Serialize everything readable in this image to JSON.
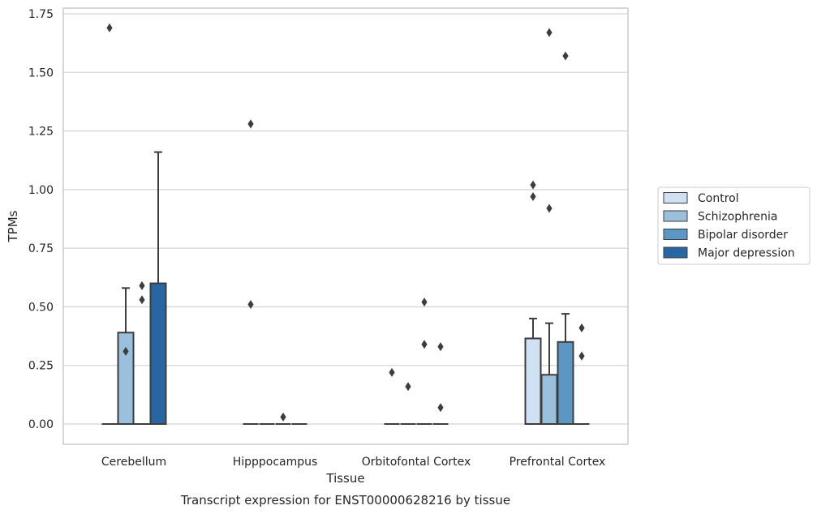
{
  "chart_data": {
    "type": "box",
    "xlabel": "Tissue",
    "ylabel": "TPMs",
    "caption": "Transcript expression for ENST00000628216 by tissue",
    "ylim": [
      -0.08,
      1.77
    ],
    "yticks": [
      0.0,
      0.25,
      0.5,
      0.75,
      1.0,
      1.25,
      1.5,
      1.75
    ],
    "ytick_labels": [
      "0.00",
      "0.25",
      "0.50",
      "0.75",
      "1.00",
      "1.25",
      "1.50",
      "1.75"
    ],
    "grid": "horizontal",
    "legend_position": "right",
    "categories": [
      "Cerebellum",
      "Hipppocampus",
      "Orbitofontal Cortex",
      "Prefrontal Cortex"
    ],
    "series": [
      {
        "name": "Control",
        "color": "#cfe1f2",
        "boxes": [
          {
            "q1": 0,
            "median": 0,
            "q3": 0,
            "whisker_high": 0,
            "outliers": [
              1.69
            ]
          },
          {
            "q1": 0,
            "median": 0,
            "q3": 0,
            "whisker_high": 0,
            "outliers": [
              1.28,
              0.51
            ]
          },
          {
            "q1": 0,
            "median": 0,
            "q3": 0,
            "whisker_high": 0,
            "outliers": [
              0.22
            ]
          },
          {
            "q1": 0,
            "median": 0,
            "q3": 0.365,
            "whisker_high": 0.45,
            "outliers": [
              1.02,
              0.97
            ]
          }
        ]
      },
      {
        "name": "Schizophrenia",
        "color": "#9ac0db",
        "boxes": [
          {
            "q1": 0,
            "median": 0,
            "q3": 0.39,
            "whisker_high": 0.58,
            "outliers": [
              0.31
            ]
          },
          {
            "q1": 0,
            "median": 0,
            "q3": 0,
            "whisker_high": 0,
            "outliers": []
          },
          {
            "q1": 0,
            "median": 0,
            "q3": 0,
            "whisker_high": 0,
            "outliers": [
              0.16
            ]
          },
          {
            "q1": 0,
            "median": 0,
            "q3": 0.21,
            "whisker_high": 0.43,
            "outliers": [
              1.67,
              0.92
            ]
          }
        ]
      },
      {
        "name": "Bipolar disorder",
        "color": "#5b97c4",
        "boxes": [
          {
            "q1": 0,
            "median": 0,
            "q3": 0,
            "whisker_high": 0,
            "outliers": [
              0.59,
              0.53
            ]
          },
          {
            "q1": 0,
            "median": 0,
            "q3": 0,
            "whisker_high": 0,
            "outliers": [
              0.03
            ]
          },
          {
            "q1": 0,
            "median": 0,
            "q3": 0,
            "whisker_high": 0,
            "outliers": [
              0.52,
              0.34
            ]
          },
          {
            "q1": 0,
            "median": 0,
            "q3": 0.35,
            "whisker_high": 0.47,
            "outliers": [
              1.57
            ]
          }
        ]
      },
      {
        "name": "Major depression",
        "color": "#2866a3",
        "boxes": [
          {
            "q1": 0,
            "median": 0,
            "q3": 0.6,
            "whisker_high": 1.16,
            "outliers": []
          },
          {
            "q1": 0,
            "median": 0,
            "q3": 0,
            "whisker_high": 0,
            "outliers": []
          },
          {
            "q1": 0,
            "median": 0,
            "q3": 0,
            "whisker_high": 0,
            "outliers": [
              0.33,
              0.07
            ]
          },
          {
            "q1": 0,
            "median": 0,
            "q3": 0,
            "whisker_high": 0,
            "outliers": [
              0.41,
              0.29
            ]
          }
        ]
      }
    ]
  }
}
